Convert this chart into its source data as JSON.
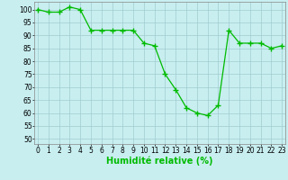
{
  "x": [
    0,
    1,
    2,
    3,
    4,
    5,
    6,
    7,
    8,
    9,
    10,
    11,
    12,
    13,
    14,
    15,
    16,
    17,
    18,
    19,
    20,
    21,
    22,
    23
  ],
  "y": [
    100,
    99,
    99,
    101,
    100,
    92,
    92,
    92,
    92,
    92,
    87,
    86,
    75,
    69,
    62,
    60,
    59,
    63,
    92,
    87,
    87,
    87,
    85,
    86
  ],
  "line_color": "#00bb00",
  "marker_color": "#00bb00",
  "bg_color": "#c8eef0",
  "grid_color": "#a0ccd0",
  "xlabel": "Humidité relative (%)",
  "xlabel_color": "#00bb00",
  "ylim": [
    48,
    103
  ],
  "xlim": [
    -0.3,
    23.3
  ],
  "yticks": [
    50,
    55,
    60,
    65,
    70,
    75,
    80,
    85,
    90,
    95,
    100
  ],
  "xtick_labels": [
    "0",
    "1",
    "2",
    "3",
    "4",
    "5",
    "6",
    "7",
    "8",
    "9",
    "10",
    "11",
    "12",
    "13",
    "14",
    "15",
    "16",
    "17",
    "18",
    "19",
    "20",
    "21",
    "22",
    "23"
  ],
  "tick_color": "#000000",
  "tick_fontsize": 5.5,
  "xlabel_fontsize": 7,
  "marker_size": 2.0,
  "linewidth": 0.9
}
